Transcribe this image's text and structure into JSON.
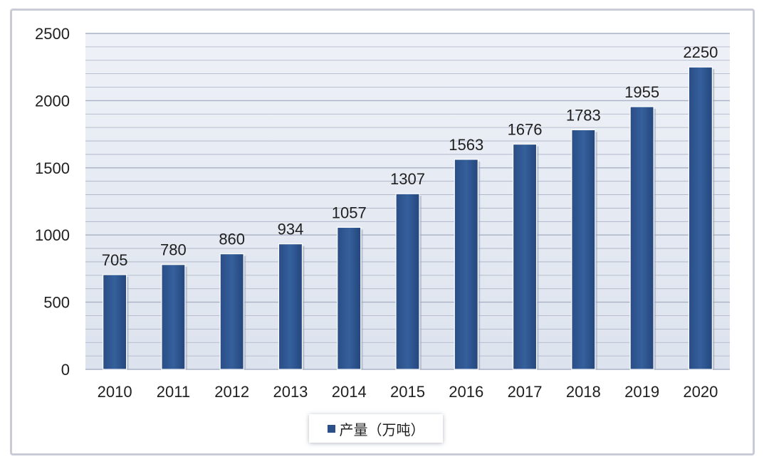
{
  "chart_data": {
    "type": "bar",
    "categories": [
      "2010",
      "2011",
      "2012",
      "2013",
      "2014",
      "2015",
      "2016",
      "2017",
      "2018",
      "2019",
      "2020"
    ],
    "series": [
      {
        "name": "产量（万吨）",
        "values": [
          705,
          780,
          860,
          934,
          1057,
          1307,
          1563,
          1676,
          1783,
          1955,
          2250
        ]
      }
    ],
    "y_ticks": [
      0,
      500,
      1000,
      1500,
      2000,
      2500
    ],
    "ylim": [
      0,
      2500
    ],
    "grid": true,
    "legend_position": "bottom",
    "data_labels": true,
    "bar_color": "#2b4f88",
    "plot_background": "#e6ebf4",
    "grid_color": "#a9b1c4"
  }
}
